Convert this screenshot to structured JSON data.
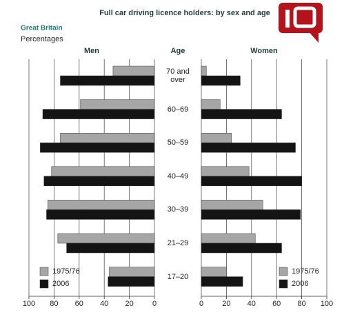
{
  "chart_data": {
    "type": "butterfly",
    "title": "Full car driving licence holders: by sex and age",
    "subtitle": "Great Britain",
    "note": "Percentages",
    "category_label": "Age",
    "categories": [
      "70 and over",
      "60–69",
      "50–59",
      "40–49",
      "30–39",
      "21–29",
      "17–20"
    ],
    "panels": [
      {
        "name": "Men",
        "reversed": true,
        "xlim": [
          0,
          100
        ],
        "xticks": [
          0,
          20,
          40,
          60,
          80,
          100
        ],
        "grid": true,
        "series": [
          {
            "name": "1975/76",
            "color": "#a6a6a6",
            "values": [
              33,
              59,
              75,
              82,
              85,
              77,
              36
            ]
          },
          {
            "name": "2006",
            "color": "#141414",
            "values": [
              75,
              89,
              91,
              88,
              86,
              70,
              37
            ]
          }
        ]
      },
      {
        "name": "Women",
        "reversed": false,
        "xlim": [
          0,
          100
        ],
        "xticks": [
          0,
          20,
          40,
          60,
          80,
          100
        ],
        "grid": true,
        "series": [
          {
            "name": "1975/76",
            "color": "#a6a6a6",
            "values": [
              4,
              15,
              24,
              38,
              49,
              43,
              20
            ]
          },
          {
            "name": "2006",
            "color": "#141414",
            "values": [
              31,
              64,
              75,
              80,
              79,
              64,
              33
            ]
          }
        ]
      }
    ]
  }
}
